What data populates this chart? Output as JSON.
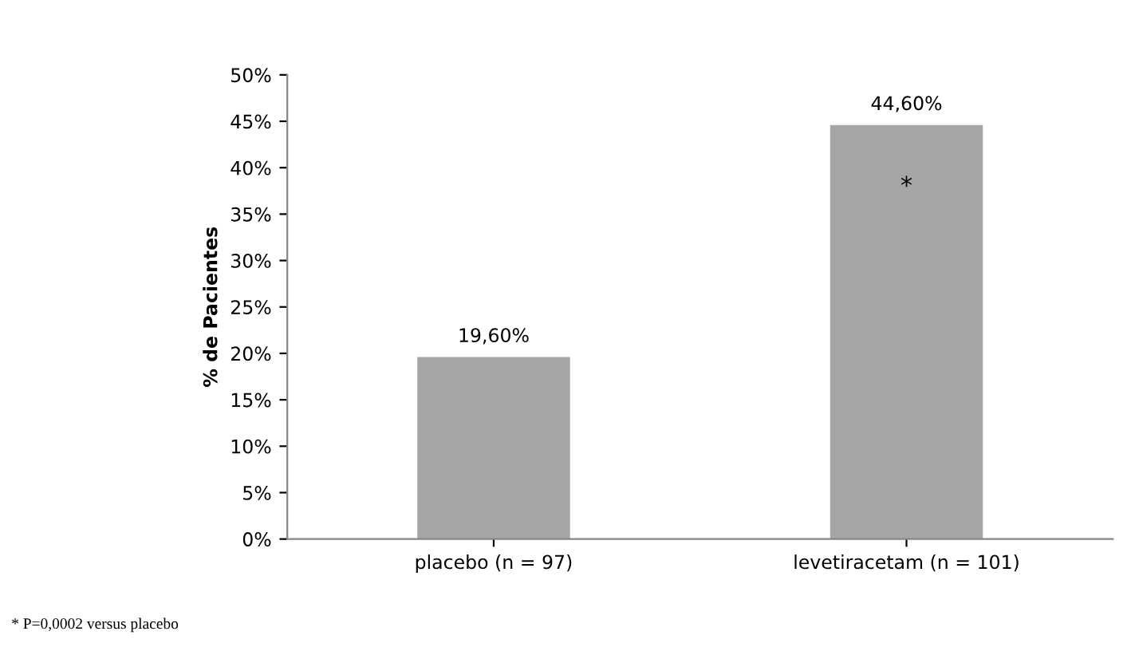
{
  "chart_data": {
    "type": "bar",
    "ylabel": "% de Pacientes",
    "categories": [
      "placebo (n = 97)",
      "levetiracetam (n = 101)"
    ],
    "values": [
      19.6,
      44.6
    ],
    "color": "#a6a6a6",
    "value_labels": [
      "19,60%",
      "44,60%"
    ],
    "ylim": [
      0,
      50
    ],
    "yticks": [
      {
        "value": 0,
        "label": "0%"
      },
      {
        "value": 5,
        "label": "5%"
      },
      {
        "value": 10,
        "label": "10%"
      },
      {
        "value": 15,
        "label": "15%"
      },
      {
        "value": 20,
        "label": "20%"
      },
      {
        "value": 25,
        "label": "25%"
      },
      {
        "value": 30,
        "label": "30%"
      },
      {
        "value": 35,
        "label": "35%"
      },
      {
        "value": 40,
        "label": "40%"
      },
      {
        "value": 45,
        "label": "45%"
      },
      {
        "value": 50,
        "label": "50%"
      }
    ],
    "grid": false,
    "legend": false,
    "annotations": [
      "*",
      "* P=0,0002 versus placebo"
    ]
  }
}
